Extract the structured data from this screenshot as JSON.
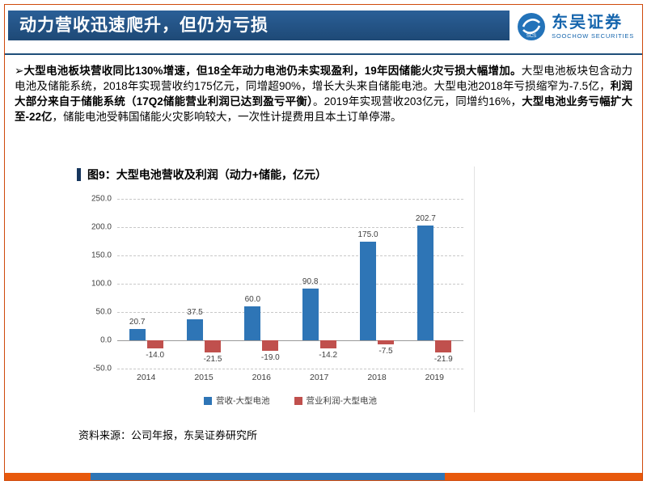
{
  "header": {
    "title": "动力营收迅速爬升，但仍为亏损",
    "logo": {
      "cn": "东吴证券",
      "en": "SOOCHOW SECURITIES",
      "badge": "SCS"
    }
  },
  "body": {
    "bullet": "➢",
    "segments": [
      {
        "text": "大型电池板块营收同比130%增速，但18全年动力电池仍未实现盈利，19年因储能火灾亏损大幅增加。",
        "bold": true
      },
      {
        "text": "大型电池板块包含动力电池及储能系统，2018年实现营收约175亿元，同增超90%，增长大头来自储能电池。大型电池2018年亏损缩窄为-7.5亿，",
        "bold": false
      },
      {
        "text": "利润大部分来自于储能系统（17Q2储能营业利润已达到盈亏平衡）",
        "bold": true
      },
      {
        "text": "。2019年实现营收203亿元，同增约16%，",
        "bold": false
      },
      {
        "text": "大型电池业务亏幅扩大至-22亿",
        "bold": true
      },
      {
        "text": "，储能电池受韩国储能火灾影响较大，一次性计提费用且本土订单停滞。",
        "bold": false
      }
    ]
  },
  "chart": {
    "title": "图9：大型电池营收及利润（动力+储能，亿元）",
    "source": "资料来源：公司年报，东吴证券研究所"
  },
  "chart_data": {
    "type": "bar",
    "title": "图9：大型电池营收及利润（动力+储能，亿元）",
    "categories": [
      "2014",
      "2015",
      "2016",
      "2017",
      "2018",
      "2019"
    ],
    "series": [
      {
        "name": "营收-大型电池",
        "color": "#2e75b6",
        "values": [
          20.7,
          37.5,
          60.0,
          90.8,
          175.0,
          202.7
        ]
      },
      {
        "name": "营业利润-大型电池",
        "color": "#c0504d",
        "values": [
          -14.0,
          -21.5,
          -19.0,
          -14.2,
          -7.5,
          -21.9
        ]
      }
    ],
    "ylim": [
      -50,
      250
    ],
    "ytick_step": 50,
    "grid": "horizontal-dashed",
    "legend_position": "bottom",
    "value_labels": true
  },
  "colors": {
    "header_blue": "#1f4e79",
    "logo_blue": "#1565ad",
    "border_red": "#cf4a0c",
    "bar_revenue": "#2e75b6",
    "bar_profit": "#c0504d"
  },
  "footer": {
    "segments": [
      {
        "color": "#e8590c",
        "width": "13.5%"
      },
      {
        "color": "#2e75b6",
        "width": "55.5%"
      },
      {
        "color": "#e8590c",
        "width": "31%"
      }
    ]
  }
}
